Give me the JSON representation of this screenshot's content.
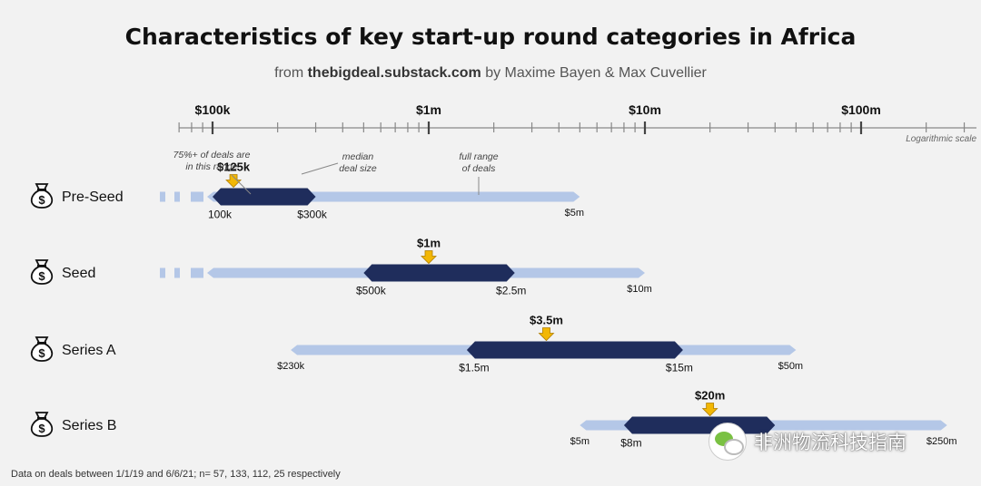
{
  "title": "Characteristics of key start-up round categories in Africa",
  "subtitle": {
    "prefix": "from ",
    "source": "thebigdeal.substack.com",
    "suffix": " by Maxime Bayen & Max Cuvellier"
  },
  "footnote": "Data on deals between 1/1/19 and 6/6/21; n= 57, 133, 112, 25 respectively",
  "watermark": "非洲物流科技指南",
  "colors": {
    "range": "#b4c7e7",
    "core": "#1f2d5c",
    "median": "#f2b705",
    "axis": "#888888",
    "text": "#222222"
  },
  "chart_data": {
    "type": "range",
    "scale": "log",
    "axis": {
      "min": 40000,
      "max": 1000000000,
      "labels": [
        {
          "value": 100000,
          "text": "$100k"
        },
        {
          "value": 1000000,
          "text": "$1m"
        },
        {
          "value": 10000000,
          "text": "$10m"
        },
        {
          "value": 100000000,
          "text": "$100m"
        }
      ],
      "scale_note": "Logarithmic scale"
    },
    "annotations": [
      {
        "text": "75%+ of deals are in this range"
      },
      {
        "text": "median deal size"
      },
      {
        "text": "full range of deals"
      }
    ],
    "series": [
      {
        "name": "Pre-Seed",
        "full_min": 50000,
        "full_max": 5000000,
        "core_min": 100000,
        "core_max": 300000,
        "median": 125000,
        "dashed_start": true,
        "labels": {
          "full_max": "$5m",
          "core_min": "100k",
          "core_max": "$300k",
          "median": "$125k"
        }
      },
      {
        "name": "Seed",
        "full_min": 50000,
        "full_max": 10000000,
        "core_min": 500000,
        "core_max": 2500000,
        "median": 1000000,
        "dashed_start": true,
        "labels": {
          "full_max": "$10m",
          "core_min": "$500k",
          "core_max": "$2.5m",
          "median": "$1m"
        }
      },
      {
        "name": "Series A",
        "full_min": 230000,
        "full_max": 50000000,
        "core_min": 1500000,
        "core_max": 15000000,
        "median": 3500000,
        "dashed_start": false,
        "labels": {
          "full_min": "$230k",
          "full_max": "$50m",
          "core_min": "$1.5m",
          "core_max": "$15m",
          "median": "$3.5m"
        }
      },
      {
        "name": "Series B",
        "full_min": 5000000,
        "full_max": 250000000,
        "core_min": 8000000,
        "core_max": 40000000,
        "median": 20000000,
        "dashed_start": false,
        "labels": {
          "full_min": "$5m",
          "full_max": "$250m",
          "core_min": "$8m",
          "median": "$20m"
        }
      }
    ]
  }
}
